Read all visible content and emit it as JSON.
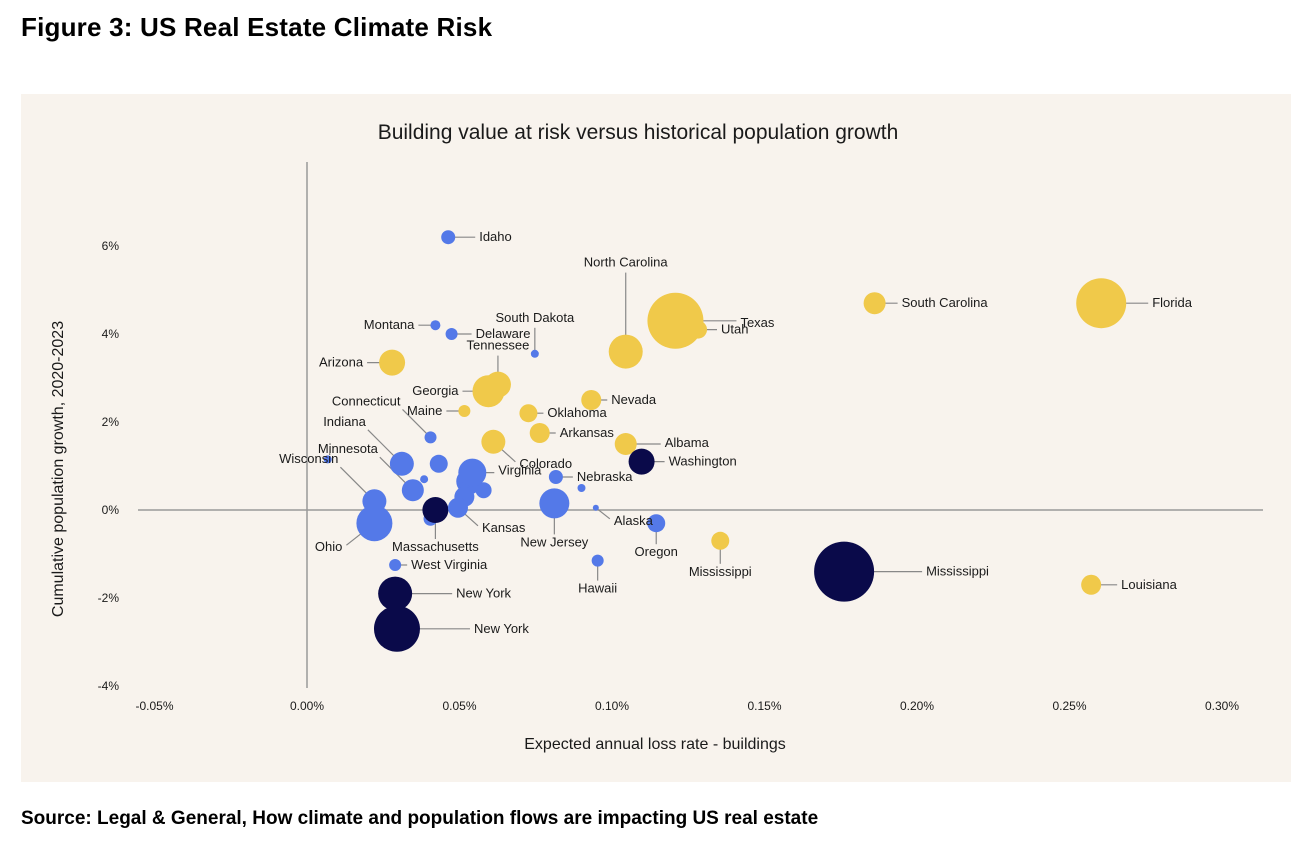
{
  "figure_title": "Figure 3: US Real Estate Climate Risk",
  "source": "Source: Legal & General, How climate and population flows are impacting US real estate",
  "colors": {
    "panel_bg": "#f8f3ed",
    "yellow": "#f0c94a",
    "blue": "#5479e8",
    "navy": "#0a0a4a",
    "axis": "#999999",
    "leader": "#888888"
  },
  "chart_data": {
    "type": "scatter",
    "title": "Building value at risk versus historical population growth",
    "xlabel": "Expected annual loss rate - buildings",
    "ylabel": "Cumulative population growth, 2020-2023",
    "xlim": [
      -0.06,
      0.31
    ],
    "ylim": [
      -4.0,
      8.0
    ],
    "x_ticks": [
      -0.05,
      0.0,
      0.05,
      0.1,
      0.15,
      0.2,
      0.25,
      0.3
    ],
    "x_tick_labels": [
      "-0.05%",
      "0.00%",
      "0.05%",
      "0.10%",
      "0.15%",
      "0.20%",
      "0.25%",
      "0.30%"
    ],
    "y_ticks": [
      6,
      4,
      2,
      0,
      -2,
      -4
    ],
    "y_tick_labels": [
      "6%",
      "4%",
      "2%",
      "0%",
      "-2%",
      "-4%"
    ],
    "grid": false,
    "legend": "none",
    "points": [
      {
        "label": "Idaho",
        "x": 0.0463,
        "y": 6.2,
        "size": 7,
        "color": "blue"
      },
      {
        "label": "Montana",
        "x": 0.0421,
        "y": 4.2,
        "size": 5,
        "color": "blue"
      },
      {
        "label": "Delaware",
        "x": 0.0474,
        "y": 4.0,
        "size": 6,
        "color": "blue"
      },
      {
        "label": "South Dakota",
        "x": 0.0747,
        "y": 3.55,
        "size": 4,
        "color": "blue"
      },
      {
        "label": "North Carolina",
        "x": 0.1045,
        "y": 3.6,
        "size": 17,
        "color": "yellow"
      },
      {
        "label": "Texas",
        "x": 0.1208,
        "y": 4.3,
        "size": 28,
        "color": "yellow"
      },
      {
        "label": "Utah",
        "x": 0.1282,
        "y": 4.1,
        "size": 9,
        "color": "yellow"
      },
      {
        "label": "South Carolina",
        "x": 0.1861,
        "y": 4.7,
        "size": 11,
        "color": "yellow"
      },
      {
        "label": "Florida",
        "x": 0.2604,
        "y": 4.7,
        "size": 25,
        "color": "yellow"
      },
      {
        "label": "Arizona",
        "x": 0.0279,
        "y": 3.35,
        "size": 13,
        "color": "yellow"
      },
      {
        "label": "Tennessee",
        "x": 0.0626,
        "y": 2.85,
        "size": 13,
        "color": "yellow"
      },
      {
        "label": "Georgia",
        "x": 0.0595,
        "y": 2.7,
        "size": 16,
        "color": "yellow"
      },
      {
        "label": "Nevada",
        "x": 0.0932,
        "y": 2.5,
        "size": 10,
        "color": "yellow"
      },
      {
        "label": "Maine",
        "x": 0.0516,
        "y": 2.25,
        "size": 6,
        "color": "yellow"
      },
      {
        "label": "Oklahoma",
        "x": 0.0726,
        "y": 2.2,
        "size": 9,
        "color": "yellow"
      },
      {
        "label": "Arkansas",
        "x": 0.0763,
        "y": 1.75,
        "size": 10,
        "color": "yellow"
      },
      {
        "label": "Connecticut",
        "x": 0.0405,
        "y": 1.65,
        "size": 6,
        "color": "blue"
      },
      {
        "label": "Albama",
        "x": 0.1045,
        "y": 1.5,
        "size": 11,
        "color": "yellow"
      },
      {
        "label": "Colorado",
        "x": 0.0611,
        "y": 1.55,
        "size": 12,
        "color": "yellow"
      },
      {
        "label": "Washington",
        "x": 0.1097,
        "y": 1.1,
        "size": 13,
        "color": "navy"
      },
      {
        "label": "Virginia",
        "x": 0.0542,
        "y": 0.85,
        "size": 14,
        "color": "blue"
      },
      {
        "label": "Nebraska",
        "x": 0.0816,
        "y": 0.75,
        "size": 7,
        "color": "blue"
      },
      {
        "label": "Indiana",
        "x": 0.0311,
        "y": 1.05,
        "size": 12,
        "color": "blue"
      },
      {
        "label": "Minnesota",
        "x": 0.0347,
        "y": 0.45,
        "size": 11,
        "color": "blue"
      },
      {
        "label": "Wisconsin",
        "x": 0.0221,
        "y": 0.2,
        "size": 12,
        "color": "blue"
      },
      {
        "label": "Ohio",
        "x": 0.0221,
        "y": -0.3,
        "size": 18,
        "color": "blue"
      },
      {
        "label": "Massachusetts",
        "x": 0.0421,
        "y": 0.0,
        "size": 13,
        "color": "navy"
      },
      {
        "label": "Kansas",
        "x": 0.0495,
        "y": 0.05,
        "size": 10,
        "color": "blue"
      },
      {
        "label": "New Jersey",
        "x": 0.0811,
        "y": 0.15,
        "size": 15,
        "color": "blue"
      },
      {
        "label": "Alaska",
        "x": 0.0947,
        "y": 0.05,
        "size": 3,
        "color": "blue"
      },
      {
        "label": "Oregon",
        "x": 0.1145,
        "y": -0.3,
        "size": 9,
        "color": "blue"
      },
      {
        "label": "Mississippi",
        "x": 0.1355,
        "y": -0.7,
        "size": 9,
        "color": "yellow"
      },
      {
        "label": "Mississippi",
        "x": 0.1761,
        "y": -1.4,
        "size": 30,
        "color": "navy"
      },
      {
        "label": "Louisiana",
        "x": 0.2571,
        "y": -1.7,
        "size": 10,
        "color": "yellow"
      },
      {
        "label": "West Virginia",
        "x": 0.0289,
        "y": -1.25,
        "size": 6,
        "color": "blue"
      },
      {
        "label": "Hawaii",
        "x": 0.0953,
        "y": -1.15,
        "size": 6,
        "color": "blue"
      },
      {
        "label": "New York",
        "x": 0.0289,
        "y": -1.9,
        "size": 17,
        "color": "navy"
      },
      {
        "label": "New York",
        "x": 0.0295,
        "y": -2.7,
        "size": 23,
        "color": "navy"
      }
    ],
    "unlabeled_points": [
      {
        "x": 0.0068,
        "y": 1.15,
        "size": 4,
        "color": "blue"
      },
      {
        "x": 0.0432,
        "y": 1.05,
        "size": 9,
        "color": "blue"
      },
      {
        "x": 0.0532,
        "y": 0.65,
        "size": 13,
        "color": "blue"
      },
      {
        "x": 0.0579,
        "y": 0.45,
        "size": 8,
        "color": "blue"
      },
      {
        "x": 0.0516,
        "y": 0.3,
        "size": 10,
        "color": "blue"
      },
      {
        "x": 0.0384,
        "y": 0.7,
        "size": 4,
        "color": "blue"
      },
      {
        "x": 0.09,
        "y": 0.5,
        "size": 4,
        "color": "blue"
      },
      {
        "x": 0.0405,
        "y": -0.2,
        "size": 7,
        "color": "blue"
      }
    ]
  }
}
